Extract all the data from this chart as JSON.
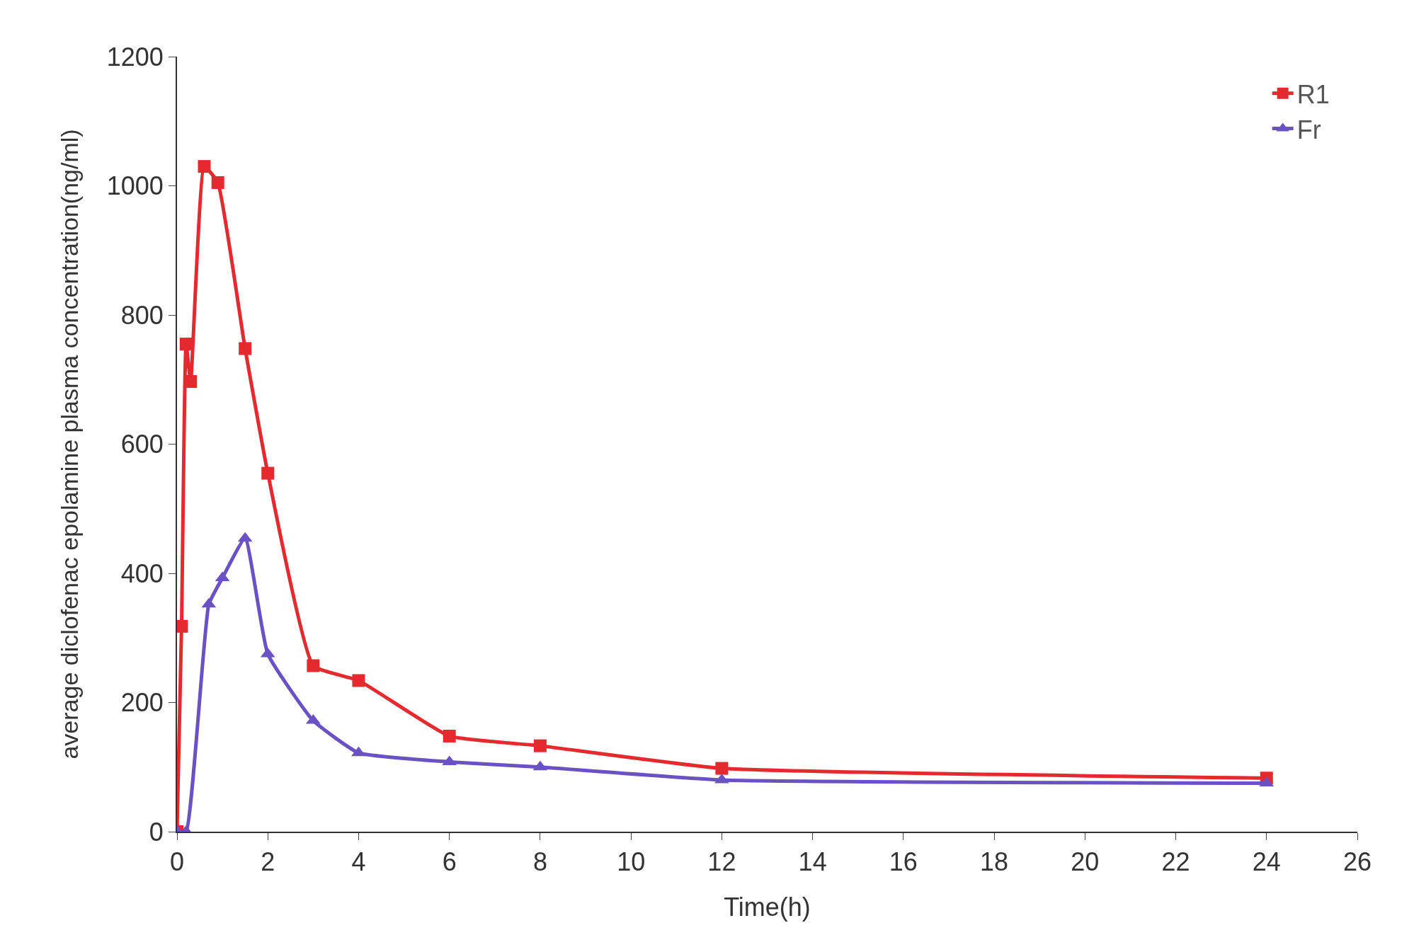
{
  "chart_data": {
    "type": "line",
    "xlabel": "Time(h)",
    "ylabel": "average diclofenac epolamine plasma concentration(ng/ml)",
    "xlim": [
      0,
      26
    ],
    "xticks": [
      0,
      2,
      4,
      6,
      8,
      10,
      12,
      14,
      16,
      18,
      20,
      22,
      24,
      26
    ],
    "ylim": [
      0,
      1200
    ],
    "yticks": [
      0,
      200,
      400,
      600,
      800,
      1000,
      1200
    ],
    "grid": false,
    "legend": "top right",
    "line_style": "solid",
    "series": [
      {
        "name": "R1",
        "color": "#e52a2f",
        "marker": "square",
        "x": [
          0,
          0.1,
          0.2,
          0.3,
          0.6,
          0.9,
          1.5,
          2,
          3,
          4,
          6,
          8,
          12,
          24
        ],
        "values": [
          0,
          318,
          755,
          697,
          1030,
          1005,
          748,
          555,
          257,
          234,
          148,
          133,
          98,
          83
        ]
      },
      {
        "name": "Fr",
        "color": "#6a52c4",
        "marker": "triangle",
        "x": [
          0,
          0.2,
          0.7,
          1,
          1.5,
          2,
          3,
          4,
          6,
          8,
          12,
          24
        ],
        "values": [
          0,
          0,
          352,
          393,
          454,
          275,
          172,
          122,
          108,
          100,
          80,
          75
        ]
      }
    ]
  }
}
